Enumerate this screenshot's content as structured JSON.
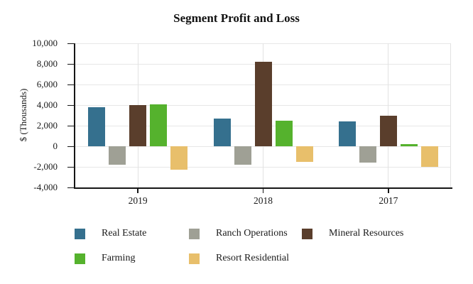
{
  "chart_data": {
    "type": "bar",
    "title": "Segment Profit and Loss",
    "ylabel": "$ (Thousands)",
    "categories": [
      "2019",
      "2018",
      "2017"
    ],
    "series": [
      {
        "name": "Real Estate",
        "color": "#35708E",
        "values": [
          3800,
          2700,
          2400
        ]
      },
      {
        "name": "Ranch Operations",
        "color": "#9FA095",
        "values": [
          -1800,
          -1800,
          -1600
        ]
      },
      {
        "name": "Mineral Resources",
        "color": "#5A3E2C",
        "values": [
          4000,
          8200,
          3000
        ]
      },
      {
        "name": "Farming",
        "color": "#55B22D",
        "values": [
          4100,
          2500,
          200
        ]
      },
      {
        "name": "Resort Residential",
        "color": "#E8BF6B",
        "values": [
          -2300,
          -1500,
          -2000
        ]
      }
    ],
    "ylim": [
      -4000,
      10000
    ],
    "ytick_step": 2000,
    "ytick_labels": [
      "10,000",
      "8,000",
      "6,000",
      "4,000",
      "2,000",
      "0",
      "-2,000",
      "-4,000"
    ],
    "grid": true,
    "legend_position": "bottom"
  }
}
